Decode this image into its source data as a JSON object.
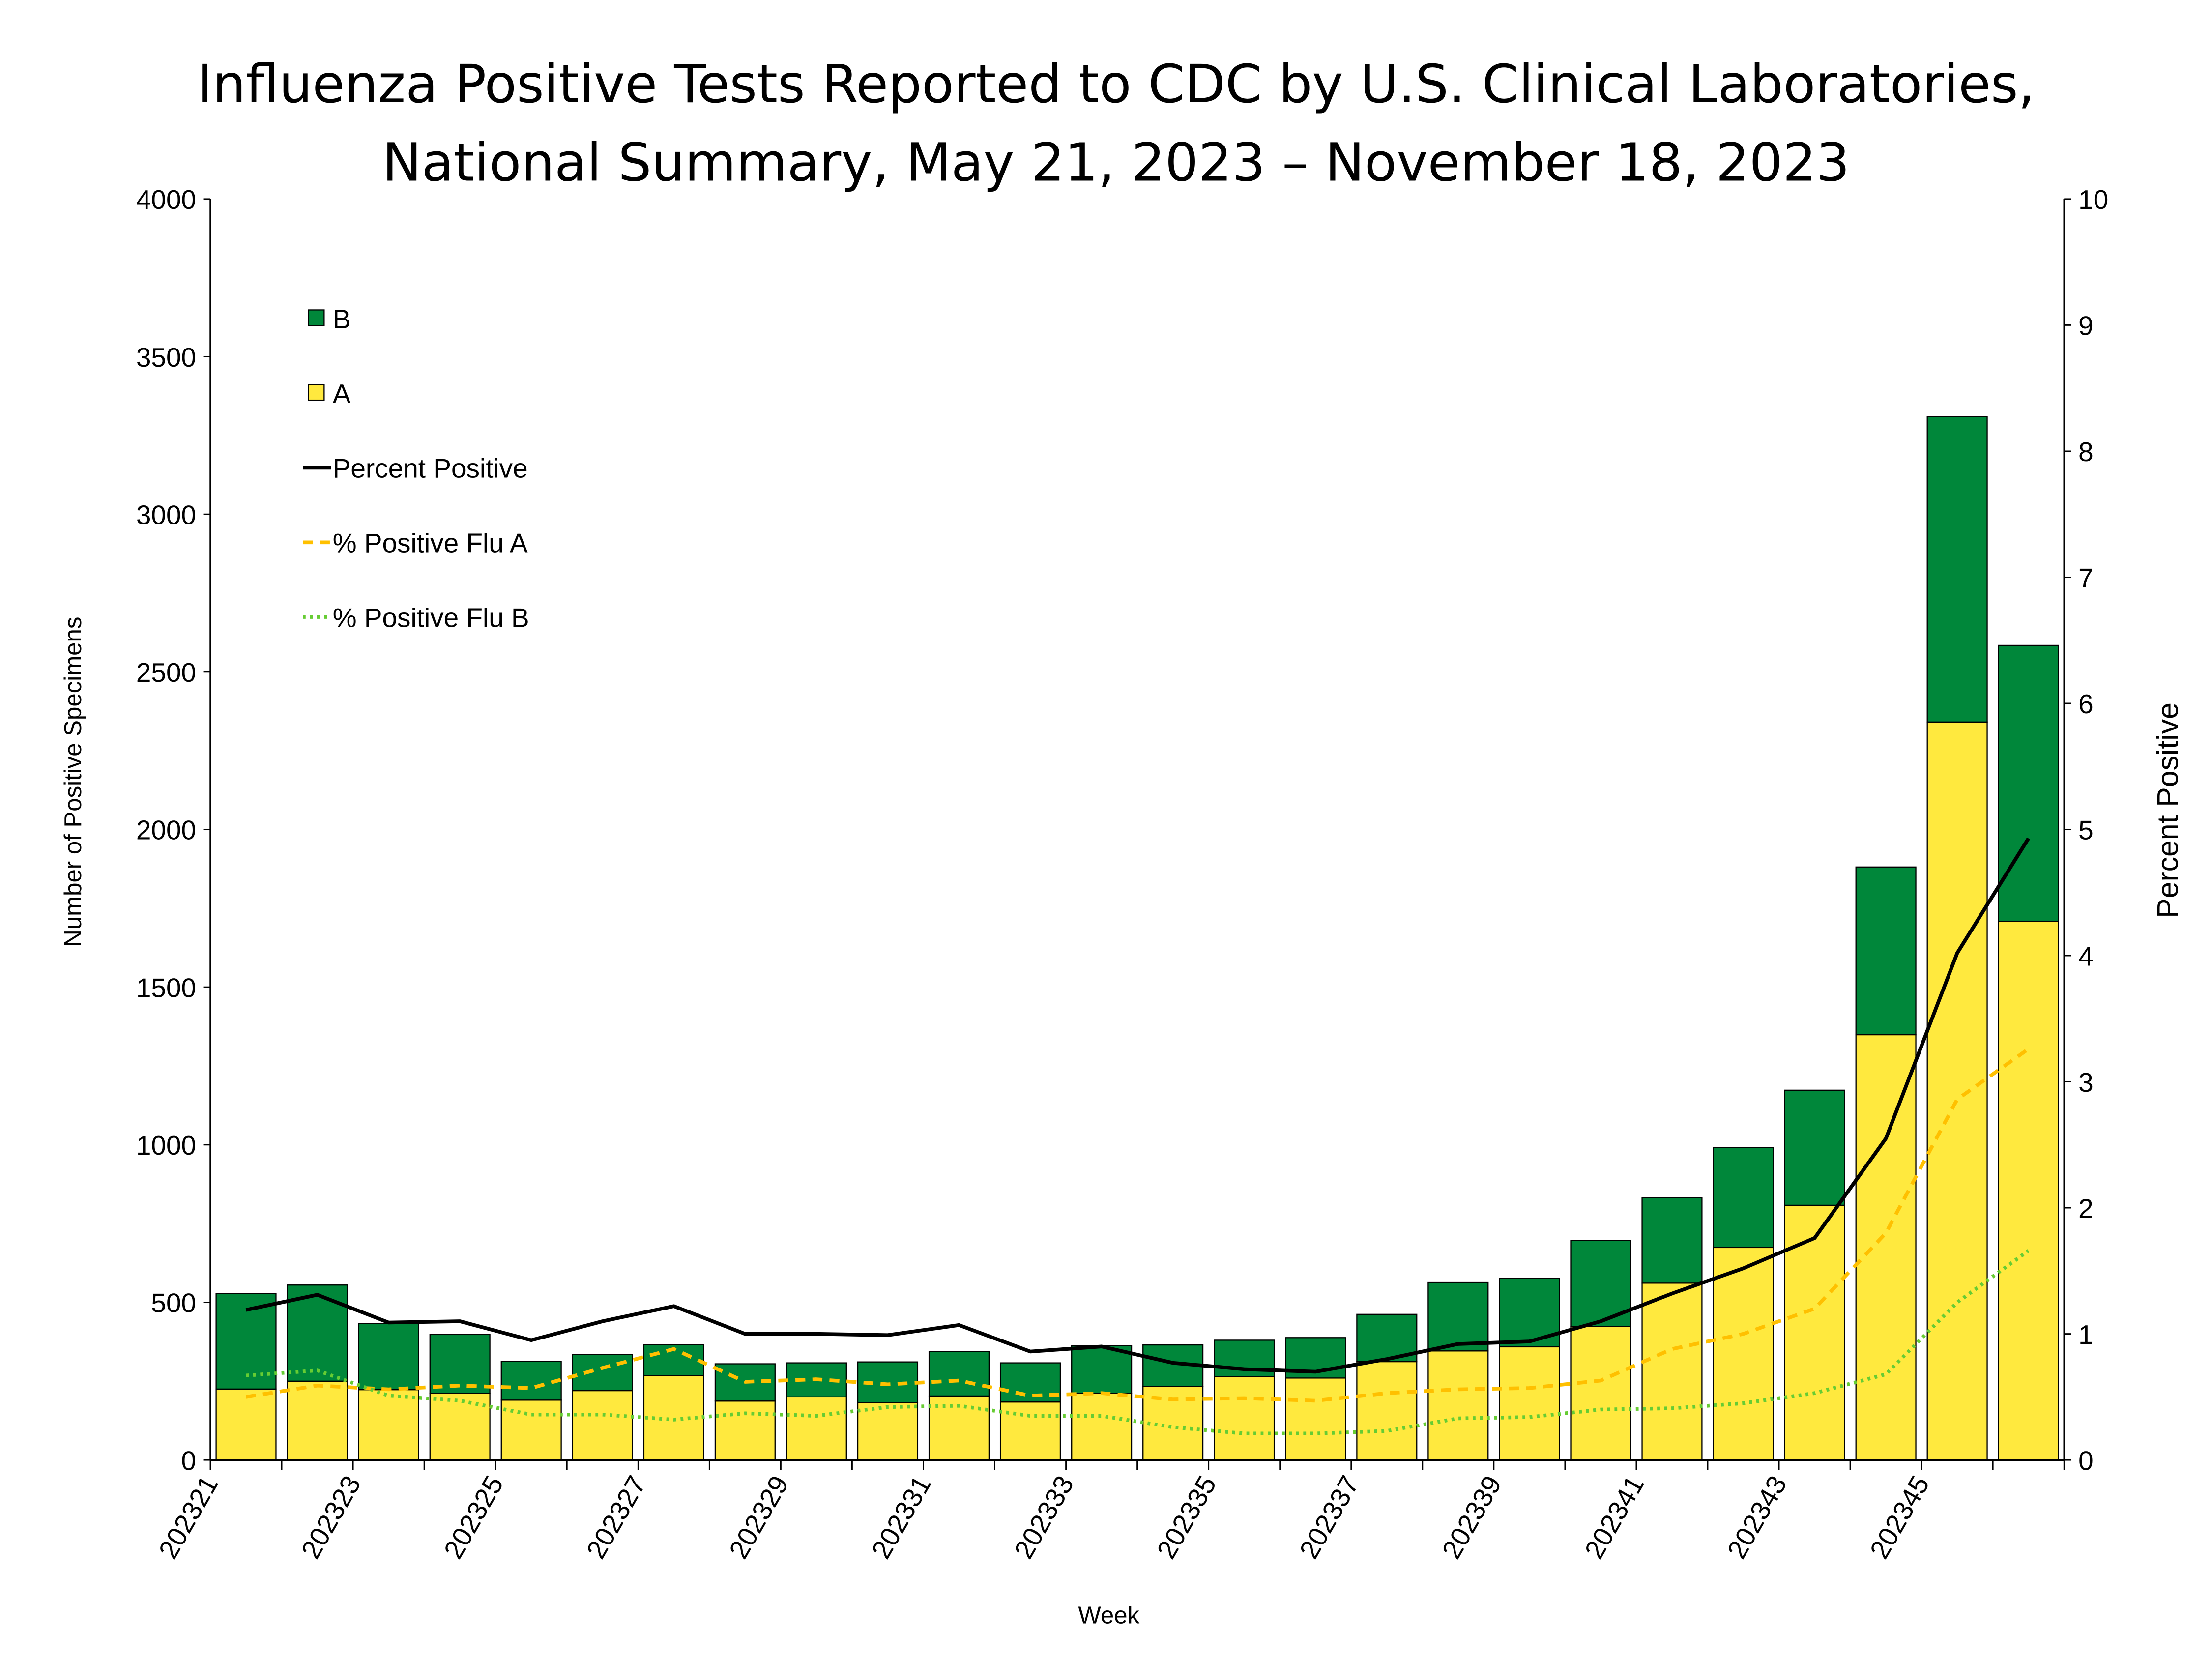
{
  "chart_data": {
    "type": "bar",
    "title": [
      "Influenza Positive Tests Reported to CDC by U.S. Clinical Laboratories,",
      "National Summary, May 21, 2023 – November 18, 2023"
    ],
    "xlabel": "Week",
    "ylabel": "Number of Positive Specimens",
    "y2label": "Percent Positive",
    "ylim": [
      0,
      4000
    ],
    "yticks": [
      0,
      500,
      1000,
      1500,
      2000,
      2500,
      3000,
      3500,
      4000
    ],
    "y2lim": [
      0,
      10
    ],
    "y2ticks": [
      0,
      1,
      2,
      3,
      4,
      5,
      6,
      7,
      8,
      9,
      10
    ],
    "categories": [
      "202321",
      "202322",
      "202323",
      "202324",
      "202325",
      "202326",
      "202327",
      "202328",
      "202329",
      "202330",
      "202331",
      "202332",
      "202333",
      "202334",
      "202335",
      "202336",
      "202337",
      "202338",
      "202339",
      "202340",
      "202341",
      "202342",
      "202343",
      "202344",
      "202345",
      "202346"
    ],
    "xtick_labels_shown": [
      "202321",
      "202323",
      "202325",
      "202327",
      "202329",
      "202331",
      "202333",
      "202335",
      "202337",
      "202339",
      "202341",
      "202343",
      "202345"
    ],
    "legend_placement": "top-left",
    "series": [
      {
        "name": "A",
        "kind": "stacked-bar",
        "color": "#FFE93E",
        "values": [
          225,
          250,
          223,
          212,
          190,
          220,
          268,
          187,
          200,
          182,
          203,
          184,
          212,
          233,
          265,
          260,
          312,
          346,
          359,
          424,
          561,
          674,
          808,
          1349,
          2341,
          1709
        ]
      },
      {
        "name": "B",
        "kind": "stacked-bar",
        "color": "#00873A",
        "values": [
          303,
          305,
          210,
          186,
          123,
          115,
          98,
          118,
          108,
          129,
          141,
          124,
          151,
          132,
          115,
          128,
          150,
          217,
          217,
          272,
          271,
          317,
          365,
          532,
          969,
          875
        ]
      },
      {
        "name": "Percent Positive",
        "kind": "line",
        "axis": "right",
        "color": "#000000",
        "values": [
          1.19,
          1.31,
          1.09,
          1.1,
          0.95,
          1.1,
          1.22,
          1.0,
          1.0,
          0.99,
          1.07,
          0.86,
          0.9,
          0.77,
          0.72,
          0.7,
          0.8,
          0.92,
          0.94,
          1.1,
          1.32,
          1.52,
          1.76,
          2.55,
          4.02,
          4.93
        ]
      },
      {
        "name": "% Positive Flu A",
        "kind": "dashed-line",
        "axis": "right",
        "color": "#FFC000",
        "values": [
          0.5,
          0.59,
          0.56,
          0.59,
          0.57,
          0.73,
          0.88,
          0.62,
          0.64,
          0.6,
          0.63,
          0.51,
          0.53,
          0.48,
          0.49,
          0.47,
          0.53,
          0.56,
          0.57,
          0.63,
          0.88,
          1.0,
          1.2,
          1.8,
          2.86,
          3.26
        ]
      },
      {
        "name": "% Positive Flu B",
        "kind": "dotted-line",
        "axis": "right",
        "color": "#66CC33",
        "values": [
          0.67,
          0.71,
          0.51,
          0.47,
          0.36,
          0.36,
          0.32,
          0.37,
          0.35,
          0.42,
          0.43,
          0.35,
          0.35,
          0.26,
          0.21,
          0.21,
          0.23,
          0.33,
          0.34,
          0.4,
          0.41,
          0.45,
          0.53,
          0.68,
          1.25,
          1.66
        ]
      }
    ],
    "legend_order": [
      "B",
      "A",
      "Percent Positive",
      "% Positive Flu A",
      "% Positive Flu B"
    ]
  }
}
